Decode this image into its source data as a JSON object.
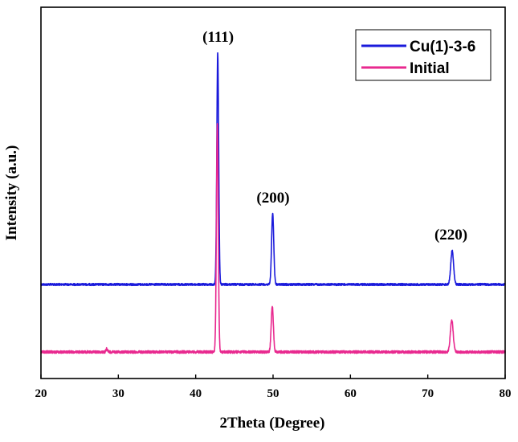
{
  "chart_data": {
    "type": "line",
    "xlabel": "2Theta (Degree)",
    "ylabel": "Intensity (a.u.)",
    "xlim": [
      20,
      80
    ],
    "x_ticks": [
      "20",
      "30",
      "40",
      "50",
      "60",
      "70",
      "80"
    ],
    "y_ticks_labeled": false,
    "grid": false,
    "legend_position": "top-right",
    "series": [
      {
        "name": "Cu(1)-3-6",
        "color": "#1a1adb",
        "baseline": 354,
        "noise": 1.3,
        "peaks": [
          {
            "x": 42.85,
            "height": 288,
            "width": 0.12
          },
          {
            "x": 49.95,
            "height": 88,
            "width": 0.14
          },
          {
            "x": 73.15,
            "height": 42,
            "width": 0.18
          }
        ]
      },
      {
        "name": "Initial",
        "color": "#e8298f",
        "baseline": 438,
        "noise": 1.6,
        "peaks": [
          {
            "x": 42.8,
            "height": 285,
            "width": 0.12
          },
          {
            "x": 49.9,
            "height": 57,
            "width": 0.14
          },
          {
            "x": 73.1,
            "height": 40,
            "width": 0.18
          },
          {
            "x": 28.5,
            "height": 4,
            "width": 0.1
          }
        ]
      }
    ],
    "annotations": [
      {
        "text": "(111)",
        "x": 42.9
      },
      {
        "text": "(200)",
        "x": 50.0
      },
      {
        "text": "(220)",
        "x": 73.0
      }
    ]
  }
}
